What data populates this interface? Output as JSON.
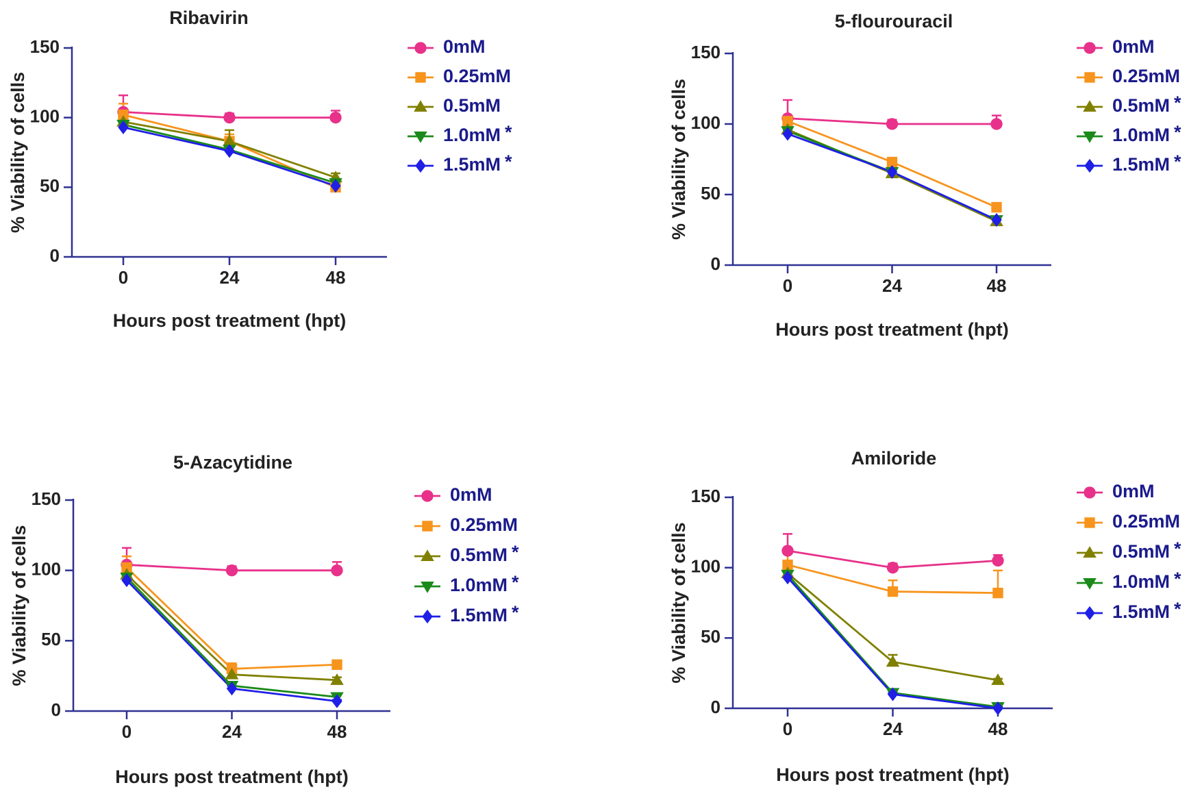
{
  "figure": {
    "panel_count": 4
  },
  "chart_data": [
    {
      "type": "line",
      "title": "Ribavirin",
      "xlabel": "Hours post treatment (hpt)",
      "ylabel": "% Viability of cells",
      "x": [
        0,
        24,
        48
      ],
      "x_tick_labels": [
        "0",
        "24",
        "48"
      ],
      "ylim": [
        0,
        150
      ],
      "y_ticks": [
        0,
        50,
        100,
        150
      ],
      "y_tick_labels": [
        "0",
        "50",
        "100",
        "150"
      ],
      "legend_position": "right",
      "series": [
        {
          "name": "0mM",
          "marker": "circle",
          "color": "#e8318a",
          "values": [
            104,
            100,
            100
          ],
          "errors": [
            12,
            3,
            5
          ],
          "significant": false
        },
        {
          "name": "0.25mM",
          "marker": "square",
          "color": "#f7941d",
          "values": [
            102,
            83,
            50
          ],
          "errors": [
            8,
            5,
            2
          ],
          "significant": false
        },
        {
          "name": "0.5mM",
          "marker": "triangle-up",
          "color": "#808000",
          "values": [
            97,
            83,
            57
          ],
          "errors": [
            3,
            8,
            3
          ],
          "significant": false
        },
        {
          "name": "1.0mM",
          "marker": "triangle-down",
          "color": "#1a8a1a",
          "values": [
            95,
            77,
            53
          ],
          "errors": [
            8,
            4,
            3
          ],
          "significant": true
        },
        {
          "name": "1.5mM",
          "marker": "diamond",
          "color": "#1f1fe6",
          "values": [
            93,
            76,
            51
          ],
          "errors": [
            10,
            10,
            2
          ],
          "significant": true
        }
      ]
    },
    {
      "type": "line",
      "title": "5-flourouracil",
      "xlabel": "Hours post treatment (hpt)",
      "ylabel": "% Viability of cells",
      "x": [
        0,
        24,
        48
      ],
      "x_tick_labels": [
        "0",
        "24",
        "48"
      ],
      "ylim": [
        0,
        150
      ],
      "y_ticks": [
        0,
        50,
        100,
        150
      ],
      "y_tick_labels": [
        "0",
        "50",
        "100",
        "150"
      ],
      "legend_position": "right",
      "series": [
        {
          "name": "0mM",
          "marker": "circle",
          "color": "#e8318a",
          "values": [
            104,
            100,
            100
          ],
          "errors": [
            13,
            3,
            6
          ],
          "significant": false
        },
        {
          "name": "0.25mM",
          "marker": "square",
          "color": "#f7941d",
          "values": [
            102,
            73,
            41
          ],
          "errors": [
            4,
            2,
            2
          ],
          "significant": false
        },
        {
          "name": "0.5mM",
          "marker": "triangle-up",
          "color": "#808000",
          "values": [
            96,
            65,
            31
          ],
          "errors": [
            3,
            2,
            2
          ],
          "significant": true
        },
        {
          "name": "1.0mM",
          "marker": "triangle-down",
          "color": "#1a8a1a",
          "values": [
            95,
            66,
            32
          ],
          "errors": [
            3,
            2,
            2
          ],
          "significant": true
        },
        {
          "name": "1.5mM",
          "marker": "diamond",
          "color": "#1f1fe6",
          "values": [
            93,
            66,
            32
          ],
          "errors": [
            3,
            2,
            2
          ],
          "significant": true
        }
      ]
    },
    {
      "type": "line",
      "title": "5-Azacytidine",
      "xlabel": "Hours post treatment (hpt)",
      "ylabel": "% Viability of cells",
      "x": [
        0,
        24,
        48
      ],
      "x_tick_labels": [
        "0",
        "24",
        "48"
      ],
      "ylim": [
        0,
        150
      ],
      "y_ticks": [
        0,
        50,
        100,
        150
      ],
      "y_tick_labels": [
        "0",
        "50",
        "100",
        "150"
      ],
      "legend_position": "right",
      "series": [
        {
          "name": "0mM",
          "marker": "circle",
          "color": "#e8318a",
          "values": [
            104,
            100,
            100
          ],
          "errors": [
            12,
            3,
            6
          ],
          "significant": false
        },
        {
          "name": "0.25mM",
          "marker": "square",
          "color": "#f7941d",
          "values": [
            102,
            30,
            33
          ],
          "errors": [
            8,
            4,
            2
          ],
          "significant": false
        },
        {
          "name": "0.5mM",
          "marker": "triangle-up",
          "color": "#808000",
          "values": [
            97,
            26,
            22
          ],
          "errors": [
            3,
            2,
            2
          ],
          "significant": true
        },
        {
          "name": "1.0mM",
          "marker": "triangle-down",
          "color": "#1a8a1a",
          "values": [
            95,
            18,
            10
          ],
          "errors": [
            8,
            2,
            2
          ],
          "significant": true
        },
        {
          "name": "1.5mM",
          "marker": "diamond",
          "color": "#1f1fe6",
          "values": [
            93,
            16,
            7
          ],
          "errors": [
            10,
            2,
            1
          ],
          "significant": true
        }
      ]
    },
    {
      "type": "line",
      "title": "Amiloride",
      "xlabel": "Hours post treatment (hpt)",
      "ylabel": "% Viability of cells",
      "x": [
        0,
        24,
        48
      ],
      "x_tick_labels": [
        "0",
        "24",
        "48"
      ],
      "ylim": [
        0,
        150
      ],
      "y_ticks": [
        0,
        50,
        100,
        150
      ],
      "y_tick_labels": [
        "0",
        "50",
        "100",
        "150"
      ],
      "legend_position": "right",
      "series": [
        {
          "name": "0mM",
          "marker": "circle",
          "color": "#e8318a",
          "values": [
            112,
            100,
            105
          ],
          "errors": [
            12,
            3,
            4
          ],
          "significant": false
        },
        {
          "name": "0.25mM",
          "marker": "square",
          "color": "#f7941d",
          "values": [
            102,
            83,
            82
          ],
          "errors": [
            8,
            8,
            16
          ],
          "significant": false
        },
        {
          "name": "0.5mM",
          "marker": "triangle-up",
          "color": "#808000",
          "values": [
            96,
            33,
            20
          ],
          "errors": [
            3,
            5,
            1
          ],
          "significant": true
        },
        {
          "name": "1.0mM",
          "marker": "triangle-down",
          "color": "#1a8a1a",
          "values": [
            95,
            11,
            1
          ],
          "errors": [
            10,
            1,
            1
          ],
          "significant": true
        },
        {
          "name": "1.5mM",
          "marker": "diamond",
          "color": "#1f1fe6",
          "values": [
            93,
            10,
            0
          ],
          "errors": [
            10,
            1,
            1
          ],
          "significant": true
        }
      ]
    }
  ]
}
